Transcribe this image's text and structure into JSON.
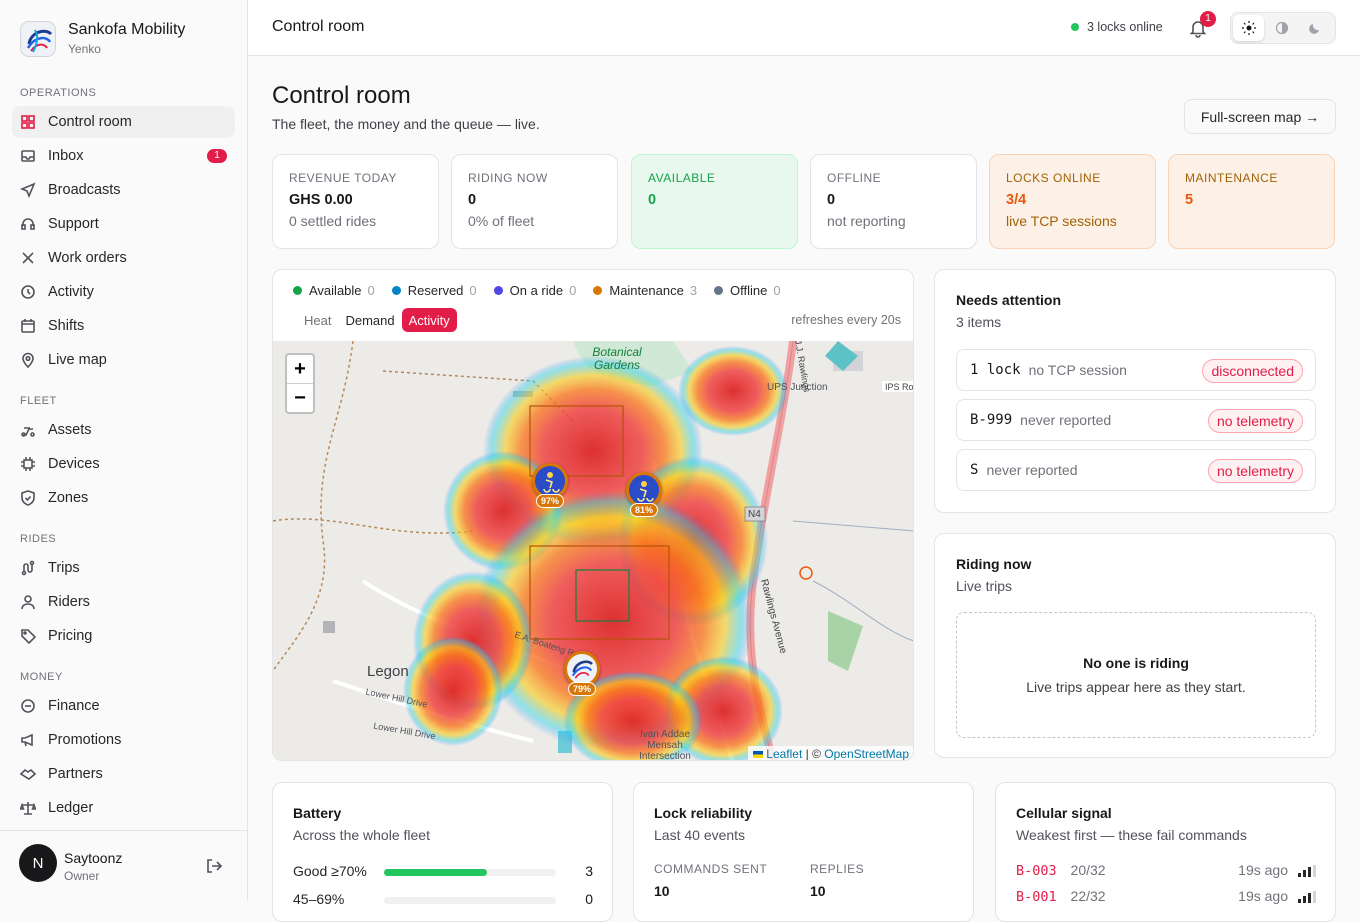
{
  "brand": {
    "name": "Sankofa Mobility",
    "sub": "Yenko"
  },
  "nav": {
    "sections": {
      "operations": "OPERATIONS",
      "fleet": "FLEET",
      "rides": "RIDES",
      "money": "MONEY"
    },
    "items": [
      {
        "label": "Control room",
        "icon": "dashboard-icon",
        "active": true
      },
      {
        "label": "Inbox",
        "icon": "inbox-icon",
        "badge": "1"
      },
      {
        "label": "Broadcasts",
        "icon": "send-icon"
      },
      {
        "label": "Support",
        "icon": "headset-icon"
      },
      {
        "label": "Work orders",
        "icon": "tools-icon"
      },
      {
        "label": "Activity",
        "icon": "history-icon"
      },
      {
        "label": "Shifts",
        "icon": "calendar-icon"
      },
      {
        "label": "Live map",
        "icon": "map-pin-icon"
      },
      {
        "label": "Assets",
        "icon": "scooter-icon"
      },
      {
        "label": "Devices",
        "icon": "chip-icon"
      },
      {
        "label": "Zones",
        "icon": "shield-icon"
      },
      {
        "label": "Trips",
        "icon": "route-icon"
      },
      {
        "label": "Riders",
        "icon": "user-icon"
      },
      {
        "label": "Pricing",
        "icon": "tag-icon"
      },
      {
        "label": "Finance",
        "icon": "wallet-icon"
      },
      {
        "label": "Promotions",
        "icon": "megaphone-icon"
      },
      {
        "label": "Partners",
        "icon": "handshake-icon"
      },
      {
        "label": "Ledger",
        "icon": "scale-icon"
      }
    ]
  },
  "user": {
    "initial": "N",
    "name": "Saytoonz",
    "role": "Owner"
  },
  "topbar": {
    "title": "Control room",
    "locks_online": "3 locks online",
    "notifications": "1"
  },
  "page": {
    "title": "Control room",
    "subtitle": "The fleet, the money and the queue — live.",
    "fullscreen": "Full-screen map →"
  },
  "kpis": [
    {
      "label": "REVENUE TODAY",
      "value": "GHS 0.00",
      "note": "0 settled rides"
    },
    {
      "label": "RIDING NOW",
      "value": "0",
      "note": "0% of fleet"
    },
    {
      "label": "AVAILABLE",
      "value": "0",
      "note": ""
    },
    {
      "label": "OFFLINE",
      "value": "0",
      "note": "not reporting"
    },
    {
      "label": "LOCKS ONLINE",
      "value": "3/4",
      "note": "live TCP sessions"
    },
    {
      "label": "MAINTENANCE",
      "value": "5",
      "note": ""
    }
  ],
  "map": {
    "legend": [
      {
        "label": "Available",
        "count": "0",
        "color": "#16a34a"
      },
      {
        "label": "Reserved",
        "count": "0",
        "color": "#0284c7"
      },
      {
        "label": "On a ride",
        "count": "0",
        "color": "#4f46e5"
      },
      {
        "label": "Maintenance",
        "count": "3",
        "color": "#d97706"
      },
      {
        "label": "Offline",
        "count": "0",
        "color": "#64748b"
      }
    ],
    "modes": [
      "Heat",
      "Demand",
      "Activity"
    ],
    "active_mode": "Activity",
    "refresh": "refreshes every 20s",
    "zoom_in": "+",
    "zoom_out": "−",
    "attribution_leaflet": "Leaflet",
    "attribution_sep": " | © ",
    "attribution_osm": "OpenStreetMap",
    "labels": {
      "gardens": "Botanical Gardens",
      "legon": "Legon",
      "ups": "UPS Junction",
      "ips": "IPS Ro",
      "n4": "N4",
      "road1": "E.A. Boateng Road",
      "road2": "Lower Hill Drive",
      "road3": "Lower Hill Drive",
      "avenue": "Rawlings Avenue",
      "ivan": "Ivan Addae Mensah Intersection",
      "rawl": "J.J. Rawlings"
    },
    "markers": [
      {
        "label": "97%"
      },
      {
        "label": "81%"
      },
      {
        "label": "79%"
      }
    ]
  },
  "attention": {
    "title": "Needs attention",
    "sub": "3 items",
    "rows": [
      {
        "id": "1 lock",
        "msg": "no TCP session",
        "tag": "disconnected"
      },
      {
        "id": "B-999",
        "msg": "never reported",
        "tag": "no telemetry"
      },
      {
        "id": "S",
        "msg": "never reported",
        "tag": "no telemetry"
      }
    ]
  },
  "riding": {
    "title": "Riding now",
    "sub": "Live trips",
    "empty_title": "No one is riding",
    "empty_desc": "Live trips appear here as they start."
  },
  "battery": {
    "title": "Battery",
    "sub": "Across the whole fleet",
    "rows": [
      {
        "label": "Good ≥70%",
        "count": "3",
        "fraction": 0.6
      },
      {
        "label": "45–69%",
        "count": "0",
        "fraction": 0
      }
    ]
  },
  "lock": {
    "title": "Lock reliability",
    "sub": "Last 40 events",
    "sent_label": "COMMANDS SENT",
    "sent": "10",
    "replies_label": "REPLIES",
    "replies": "10"
  },
  "cellular": {
    "title": "Cellular signal",
    "sub": "Weakest first — these fail commands",
    "rows": [
      {
        "id": "B-003",
        "val": "20/32",
        "ago": "19s ago"
      },
      {
        "id": "B-001",
        "val": "22/32",
        "ago": "19s ago"
      }
    ]
  }
}
